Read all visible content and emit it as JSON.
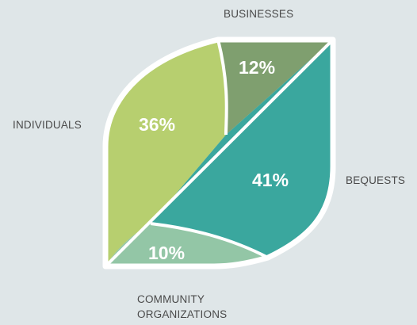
{
  "chart_data": {
    "type": "pie",
    "title": "",
    "slices": [
      {
        "label": "INDIVIDUALS",
        "value": 36,
        "display": "36%",
        "color": "#b7cf6f"
      },
      {
        "label": "BUSINESSES",
        "value": 12,
        "display": "12%",
        "color": "#7f9f6f"
      },
      {
        "label": "BEQUESTS",
        "value": 41,
        "display": "41%",
        "color": "#3aa79e"
      },
      {
        "label": "COMMUNITY ORGANIZATIONS",
        "value": 10,
        "display": "10%",
        "color": "#93c6a6",
        "label_lines": [
          "COMMUNITY",
          "ORGANIZATIONS"
        ]
      }
    ],
    "outline_color": "#ffffff",
    "background_color": "#dfe6e8"
  }
}
